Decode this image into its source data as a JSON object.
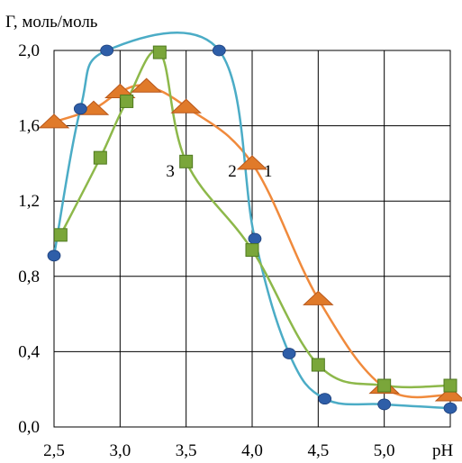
{
  "chart_data": {
    "type": "line",
    "ylabel": "Г, моль/моль",
    "xlabel": "pH",
    "xlim": [
      2.5,
      5.5
    ],
    "ylim": [
      0.0,
      2.0
    ],
    "x_ticks": [
      "2,5",
      "3,0",
      "3,5",
      "4,0",
      "4,5",
      "5,0"
    ],
    "y_ticks": [
      "0,0",
      "0,4",
      "0,8",
      "1,2",
      "1,6",
      "2,0"
    ],
    "x_tick_values": [
      2.5,
      3.0,
      3.5,
      4.0,
      4.5,
      5.0
    ],
    "y_tick_values": [
      0.0,
      0.4,
      0.8,
      1.2,
      1.6,
      2.0
    ],
    "grid": true,
    "series": [
      {
        "label": "1",
        "color": "#f08a3c",
        "marker": "triangle",
        "marker_color": "#e07a2a",
        "points": [
          [
            2.5,
            1.62
          ],
          [
            2.8,
            1.69
          ],
          [
            3.0,
            1.78
          ],
          [
            3.2,
            1.81
          ],
          [
            3.5,
            1.7
          ],
          [
            4.0,
            1.4
          ],
          [
            4.5,
            0.68
          ],
          [
            5.0,
            0.21
          ],
          [
            5.5,
            0.17
          ]
        ]
      },
      {
        "label": "2",
        "color": "#4bacc6",
        "marker": "circle",
        "marker_color": "#2e5ea8",
        "points": [
          [
            2.5,
            0.91
          ],
          [
            2.7,
            1.69
          ],
          [
            2.9,
            2.0
          ],
          [
            3.75,
            2.0
          ],
          [
            4.02,
            1.0
          ],
          [
            4.28,
            0.39
          ],
          [
            4.55,
            0.15
          ],
          [
            5.0,
            0.12
          ],
          [
            5.5,
            0.1
          ]
        ]
      },
      {
        "label": "3",
        "color": "#8db84a",
        "marker": "square",
        "marker_color": "#7aa63a",
        "points": [
          [
            2.55,
            1.02
          ],
          [
            2.85,
            1.43
          ],
          [
            3.05,
            1.73
          ],
          [
            3.3,
            1.99
          ],
          [
            3.5,
            1.41
          ],
          [
            4.0,
            0.94
          ],
          [
            4.5,
            0.33
          ],
          [
            5.0,
            0.22
          ],
          [
            5.5,
            0.22
          ]
        ]
      }
    ],
    "curve_labels": [
      {
        "text": "1",
        "x": 4.12,
        "y": 1.33
      },
      {
        "text": "2",
        "x": 3.85,
        "y": 1.33
      },
      {
        "text": "3",
        "x": 3.38,
        "y": 1.33
      }
    ]
  }
}
